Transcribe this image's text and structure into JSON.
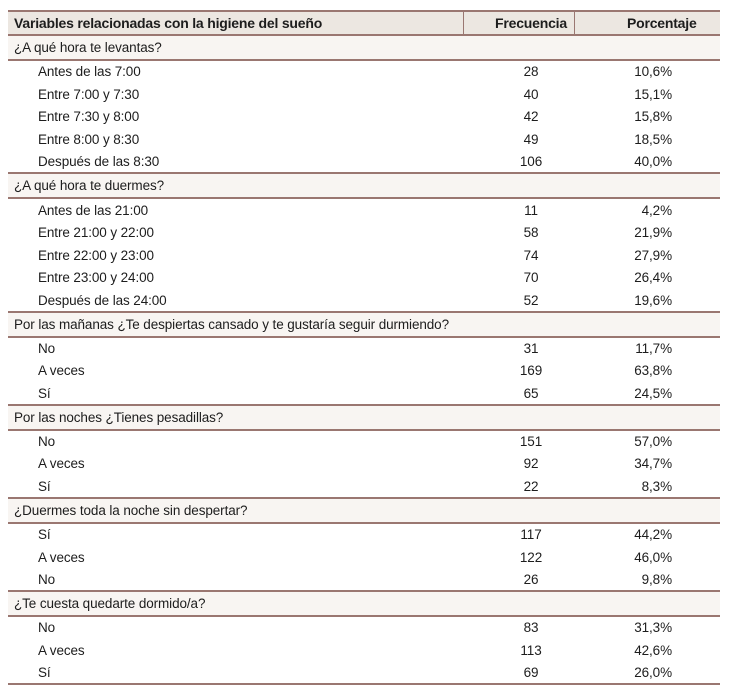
{
  "table": {
    "header": {
      "variable": "Variables relacionadas con la higiene del sueño",
      "frequency": "Frecuencia",
      "percentage": "Porcentaje"
    },
    "sections": [
      {
        "title": "¿A qué hora te levantas?",
        "rows": [
          {
            "label": "Antes de las 7:00",
            "frequency": "28",
            "percentage": "10,6%"
          },
          {
            "label": "Entre 7:00 y 7:30",
            "frequency": "40",
            "percentage": "15,1%"
          },
          {
            "label": "Entre 7:30 y 8:00",
            "frequency": "42",
            "percentage": "15,8%"
          },
          {
            "label": "Entre 8:00 y 8:30",
            "frequency": "49",
            "percentage": "18,5%"
          },
          {
            "label": "Después de las 8:30",
            "frequency": "106",
            "percentage": "40,0%"
          }
        ]
      },
      {
        "title": "¿A qué hora te duermes?",
        "rows": [
          {
            "label": "Antes de las 21:00",
            "frequency": "11",
            "percentage": "4,2%"
          },
          {
            "label": "Entre 21:00 y 22:00",
            "frequency": "58",
            "percentage": "21,9%"
          },
          {
            "label": "Entre 22:00 y 23:00",
            "frequency": "74",
            "percentage": "27,9%"
          },
          {
            "label": "Entre 23:00 y 24:00",
            "frequency": "70",
            "percentage": "26,4%"
          },
          {
            "label": "Después de las 24:00",
            "frequency": "52",
            "percentage": "19,6%"
          }
        ]
      },
      {
        "title": "Por las mañanas ¿Te despiertas cansado y te gustaría seguir durmiendo?",
        "rows": [
          {
            "label": "No",
            "frequency": "31",
            "percentage": "11,7%"
          },
          {
            "label": "A veces",
            "frequency": "169",
            "percentage": "63,8%"
          },
          {
            "label": "Sí",
            "frequency": "65",
            "percentage": "24,5%"
          }
        ]
      },
      {
        "title": "Por las noches ¿Tienes pesadillas?",
        "rows": [
          {
            "label": "No",
            "frequency": "151",
            "percentage": "57,0%"
          },
          {
            "label": "A veces",
            "frequency": "92",
            "percentage": "34,7%"
          },
          {
            "label": "Sí",
            "frequency": "22",
            "percentage": "8,3%"
          }
        ]
      },
      {
        "title": "¿Duermes toda la noche sin despertar?",
        "rows": [
          {
            "label": "Sí",
            "frequency": "117",
            "percentage": "44,2%"
          },
          {
            "label": "A veces",
            "frequency": "122",
            "percentage": "46,0%"
          },
          {
            "label": "No",
            "frequency": "26",
            "percentage": "9,8%"
          }
        ]
      },
      {
        "title": "¿Te cuesta quedarte dormido/a?",
        "rows": [
          {
            "label": "No",
            "frequency": "83",
            "percentage": "31,3%"
          },
          {
            "label": "A veces",
            "frequency": "113",
            "percentage": "42,6%"
          },
          {
            "label": "Sí",
            "frequency": "69",
            "percentage": "26,0%"
          }
        ]
      }
    ]
  },
  "colors": {
    "rule": "#9a7771",
    "header_bg": "#ece7e1",
    "section_bg": "#f8f5f2",
    "text": "#1d1d1d",
    "page_bg": "#ffffff"
  }
}
